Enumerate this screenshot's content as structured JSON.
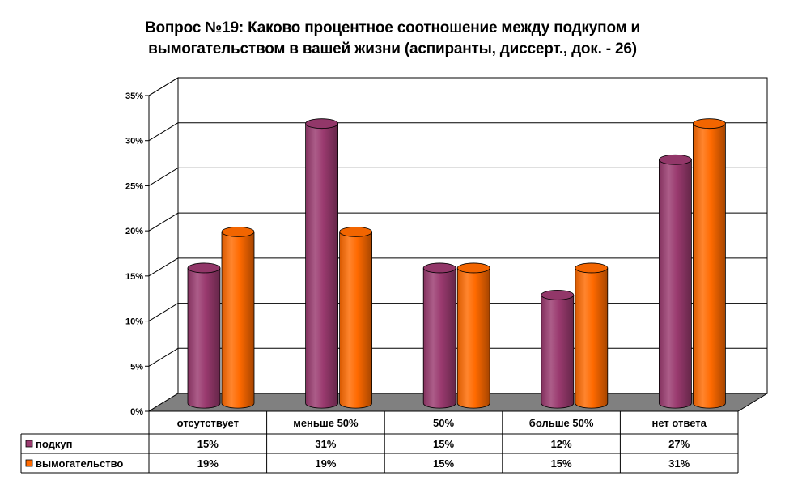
{
  "title_lines": [
    "Вопрос №19: Каково процентное соотношение между подкупом и",
    "вымогательством в вашей жизни (аспиранты, диссерт., док. - 26)"
  ],
  "chart_data": {
    "type": "bar",
    "style": "3d-cylinder",
    "title": "Вопрос №19: Каково процентное соотношение между подкупом и вымогательством в вашей жизни (аспиранты, диссерт., док. - 26)",
    "categories": [
      "отсутствует",
      "меньше 50%",
      "50%",
      "больше 50%",
      "нет ответа"
    ],
    "series": [
      {
        "name": "подкуп",
        "values": [
          15,
          31,
          15,
          12,
          27
        ],
        "labels": [
          "15%",
          "31%",
          "15%",
          "12%",
          "27%"
        ],
        "color": "#9a3a6f"
      },
      {
        "name": "вымогательство",
        "values": [
          19,
          19,
          15,
          15,
          31
        ],
        "labels": [
          "19%",
          "19%",
          "15%",
          "15%",
          "31%"
        ],
        "color": "#ff6a00"
      }
    ],
    "ylim": [
      0,
      35
    ],
    "y_ticks": [
      "0%",
      "5%",
      "10%",
      "15%",
      "20%",
      "25%",
      "30%",
      "35%"
    ],
    "grid": true,
    "legend": "data-table",
    "floor_color": "#808080"
  }
}
